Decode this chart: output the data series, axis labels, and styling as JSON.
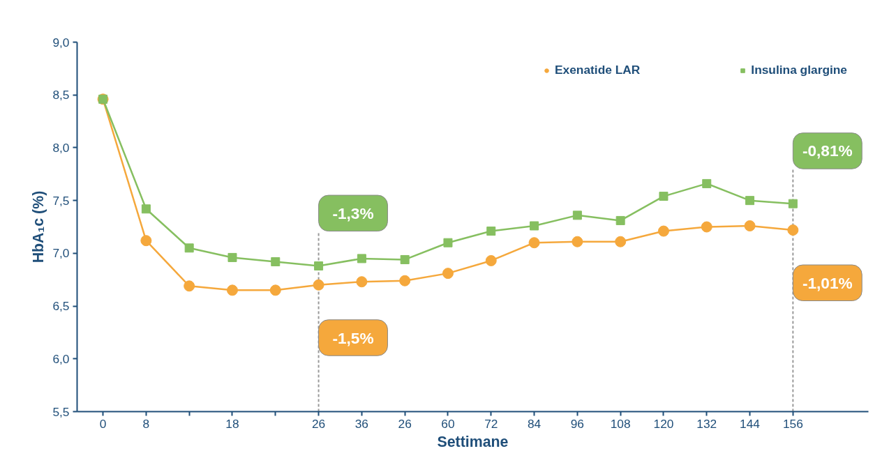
{
  "chart_data": {
    "type": "line",
    "xlabel": "Settimane",
    "ylabel": "HbA₁c (%)",
    "categories": [
      "0",
      "8",
      null,
      "18",
      null,
      "26",
      "36",
      "26",
      "60",
      "72",
      "84",
      "96",
      "108",
      "120",
      "132",
      "144",
      "156"
    ],
    "series": [
      {
        "name": "Exenatide LAR",
        "color": "#f5a83c",
        "marker": "circle",
        "values": [
          8.46,
          7.12,
          6.69,
          6.65,
          6.65,
          6.7,
          6.73,
          6.74,
          6.81,
          6.93,
          7.1,
          7.11,
          7.11,
          7.21,
          7.25,
          7.26,
          7.22
        ]
      },
      {
        "name": "Insulina glargine",
        "color": "#86bf60",
        "marker": "square",
        "values": [
          8.46,
          7.42,
          7.05,
          6.96,
          6.92,
          6.88,
          6.95,
          6.94,
          7.1,
          7.21,
          7.26,
          7.36,
          7.31,
          7.54,
          7.66,
          7.5,
          7.47
        ]
      }
    ],
    "ylim": [
      5.5,
      9.0
    ],
    "yticks": [
      {
        "value": 5.5,
        "label": "5,5"
      },
      {
        "value": 6.0,
        "label": "6,0"
      },
      {
        "value": 6.5,
        "label": "6,5"
      },
      {
        "value": 7.0,
        "label": "7,0"
      },
      {
        "value": 7.5,
        "label": "7,5"
      },
      {
        "value": 8.0,
        "label": "8,0"
      },
      {
        "value": 8.5,
        "label": "8,5"
      },
      {
        "value": 9.0,
        "label": "9,0"
      }
    ],
    "ref_lines": [
      {
        "axis": "x",
        "value": "26",
        "color": "#999999",
        "line_style": "dashed"
      },
      {
        "axis": "x",
        "value": "156",
        "color": "#999999",
        "line_style": "dashed"
      }
    ],
    "annotations": [
      {
        "text": "-1,3%",
        "x": "26",
        "y": 6.88
      },
      {
        "text": "-1,5%",
        "x": "26",
        "y": 6.7
      },
      {
        "text": "-0,81%",
        "x": "156",
        "y": 7.47
      },
      {
        "text": "-1,01%",
        "x": "156",
        "y": 7.22
      }
    ],
    "grid": false,
    "legend": "top right"
  }
}
